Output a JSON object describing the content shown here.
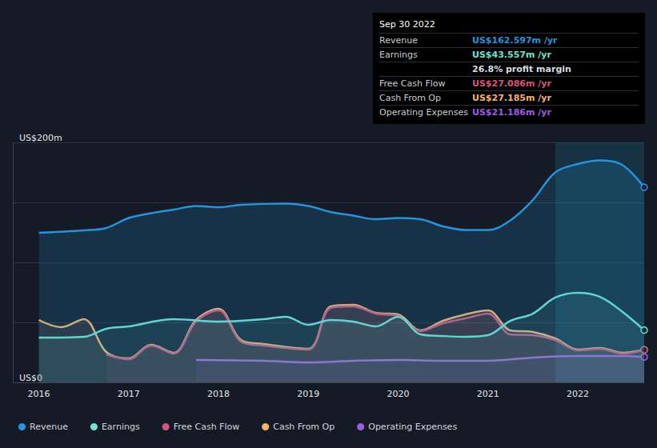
{
  "chart_data": {
    "type": "line",
    "xlim": [
      2015.71,
      2022.74
    ],
    "xticks": [
      2016,
      2017,
      2018,
      2019,
      2020,
      2021,
      2022
    ],
    "ylim": [
      0,
      200
    ],
    "yticks": [
      {
        "value": 0,
        "label": "US$0"
      },
      {
        "value": 50,
        "label": null
      },
      {
        "value": 100,
        "label": null
      },
      {
        "value": 150,
        "label": null
      },
      {
        "value": 200,
        "label": "US$200m"
      }
    ],
    "grid": true,
    "legend": "bottom left",
    "highlight_range": [
      2021.75,
      2022.74
    ],
    "series": [
      {
        "name": "Revenue",
        "color": "#2394df",
        "x": [
          2016.0,
          2016.5,
          2016.75,
          2017.0,
          2017.25,
          2017.5,
          2017.75,
          2018.0,
          2018.25,
          2018.75,
          2019.0,
          2019.25,
          2019.5,
          2019.75,
          2020.0,
          2020.25,
          2020.5,
          2020.75,
          2021.0,
          2021.25,
          2021.5,
          2021.75,
          2022.0,
          2022.25,
          2022.5,
          2022.74
        ],
        "values": [
          124.7,
          126.7,
          128.7,
          137,
          141,
          144,
          147,
          146,
          148,
          149,
          147,
          142,
          139,
          136,
          137,
          136,
          130,
          127,
          127,
          135,
          152,
          175,
          182,
          185,
          181,
          162.597
        ]
      },
      {
        "name": "Earnings",
        "color": "#6fe3d2",
        "x": [
          2016.0,
          2016.5,
          2016.75,
          2017.0,
          2017.5,
          2018.0,
          2018.5,
          2018.75,
          2019.0,
          2019.25,
          2019.5,
          2019.75,
          2020.0,
          2020.25,
          2020.5,
          2020.75,
          2021.0,
          2021.25,
          2021.5,
          2021.75,
          2022.0,
          2022.25,
          2022.5,
          2022.74
        ],
        "values": [
          37.3,
          38,
          44.7,
          46.7,
          52.7,
          50.7,
          52.7,
          54.7,
          48,
          52,
          50.7,
          46.7,
          54.7,
          40,
          38.7,
          38,
          39.3,
          51.3,
          57.3,
          70.7,
          74.7,
          71.3,
          58.7,
          43.557
        ]
      },
      {
        "name": "Free Cash Flow",
        "color": "#d4567c",
        "x": [
          2016.75,
          2017.0,
          2017.25,
          2017.5,
          2017.75,
          2018.0,
          2018.25,
          2018.5,
          2019.0,
          2019.25,
          2019.5,
          2019.75,
          2020.0,
          2020.25,
          2020.5,
          2020.75,
          2021.0,
          2021.25,
          2021.5,
          2021.75,
          2022.0,
          2022.25,
          2022.5,
          2022.74
        ],
        "values": [
          23.3,
          19.3,
          30.7,
          24,
          50.7,
          60,
          34,
          30.7,
          27.3,
          62,
          63.3,
          57.3,
          55.3,
          42.7,
          49.3,
          53.3,
          57.3,
          40,
          39.3,
          35.3,
          26.7,
          28,
          24,
          27.086
        ]
      },
      {
        "name": "Cash From Op",
        "color": "#f2b36c",
        "x": [
          2016.0,
          2016.25,
          2016.5,
          2016.75,
          2017.0,
          2017.25,
          2017.5,
          2017.75,
          2018.0,
          2018.25,
          2018.5,
          2019.0,
          2019.25,
          2019.5,
          2019.75,
          2020.0,
          2020.25,
          2020.5,
          2020.75,
          2021.0,
          2021.25,
          2021.5,
          2021.75,
          2022.0,
          2022.25,
          2022.5,
          2022.74
        ],
        "values": [
          52,
          46,
          52.7,
          25.3,
          20,
          31.3,
          24.7,
          52,
          61.3,
          35.3,
          32,
          28,
          63.3,
          64.7,
          58,
          56.7,
          43.3,
          51.3,
          56.7,
          60,
          43.3,
          42,
          36.7,
          27.3,
          28.7,
          24.7,
          27.185
        ]
      },
      {
        "name": "Operating Expenses",
        "color": "#9d5ce6",
        "x": [
          2017.75,
          2018.5,
          2019.0,
          2019.5,
          2020.0,
          2020.5,
          2021.0,
          2021.5,
          2022.0,
          2022.5,
          2022.74
        ],
        "values": [
          18.7,
          18,
          16.7,
          18,
          18.7,
          18,
          18,
          20.7,
          22,
          22,
          21.186
        ]
      }
    ],
    "info_box": {
      "title": "Sep 30 2022",
      "rows": [
        {
          "label": "Revenue",
          "value": "US$162.597m /yr",
          "color": "#2394df"
        },
        {
          "label": "Earnings",
          "value": "US$43.557m /yr",
          "color": "#6fe3d2"
        },
        {
          "value": "26.8% profit margin",
          "color": "#d8dce2"
        },
        {
          "label": "Free Cash Flow",
          "value": "US$27.086m /yr",
          "color": "#d4567c"
        },
        {
          "label": "Cash From Op",
          "value": "US$27.185m /yr",
          "color": "#f2b36c"
        },
        {
          "label": "Operating Expenses",
          "value": "US$21.186m /yr",
          "color": "#9d5ce6"
        }
      ]
    }
  }
}
